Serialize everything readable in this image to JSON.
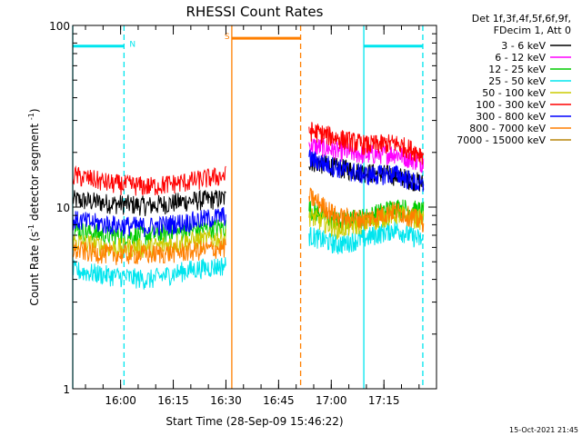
{
  "chart_data": {
    "type": "line",
    "title": "RHESSI Count Rates",
    "xlabel": "Start Time (28-Sep-09 15:46:22)",
    "ylabel_main": "Count Rate (s",
    "ylabel_exponent": "-1",
    "ylabel_close": " detector segment",
    "ylabel_exponent2": "-1",
    "ylabel_end": ")",
    "legend_header": [
      "Det 1f,3f,4f,5f,6f,9f,",
      "FDecim 1, Att 0"
    ],
    "footer": "15-Oct-2021 21:45",
    "y_scale": "log",
    "ylim": [
      1,
      100
    ],
    "y_ticks": [
      {
        "value": 1,
        "label": "1"
      },
      {
        "value": 10,
        "label": "10"
      },
      {
        "value": 100,
        "label": "100"
      }
    ],
    "xlim_minutes_from_start": [
      0,
      103.6
    ],
    "x_ticks": [
      {
        "label": "16:00",
        "minutes": 13.63
      },
      {
        "label": "16:15",
        "minutes": 28.63
      },
      {
        "label": "16:30",
        "minutes": 43.63
      },
      {
        "label": "16:45",
        "minutes": 58.63
      },
      {
        "label": "17:00",
        "minutes": 73.63
      },
      {
        "label": "17:15",
        "minutes": 88.63
      }
    ],
    "flags": [
      {
        "label": "N",
        "color": "#00e5ee",
        "start_minutes": 0,
        "end_minutes": 14.6,
        "value": 77
      },
      {
        "label": "",
        "color": "#00e5ee",
        "start_minutes": 82.9,
        "end_minutes": 99.7,
        "value": 77
      },
      {
        "label": "S",
        "color": "#ff7f00",
        "start_minutes": 45.3,
        "end_minutes": 64.9,
        "value": 85
      }
    ],
    "interval_lines": [
      {
        "minutes": 0.0,
        "color": "#00e5ee",
        "style": "solid"
      },
      {
        "minutes": 14.6,
        "color": "#00e5ee",
        "style": "dashed"
      },
      {
        "minutes": 45.3,
        "color": "#ff7f00",
        "style": "solid"
      },
      {
        "minutes": 64.9,
        "color": "#ff7f00",
        "style": "dashed"
      },
      {
        "minutes": 82.9,
        "color": "#00e5ee",
        "style": "solid"
      },
      {
        "minutes": 99.7,
        "color": "#00e5ee",
        "style": "dashed"
      }
    ],
    "data_segments": [
      {
        "start_minutes": 0.0,
        "end_minutes": 43.6
      },
      {
        "start_minutes": 67.3,
        "end_minutes": 99.9
      }
    ],
    "series": [
      {
        "name": "3 - 6 keV",
        "color": "#000000",
        "seg1": [
          11.0,
          10.5,
          10.2,
          10.8,
          11.2
        ],
        "seg2": [
          18.0,
          16.5,
          15.5,
          15.0,
          13.5
        ]
      },
      {
        "name": "6 - 12 keV",
        "color": "#ff00ff",
        "seg1": [
          null,
          null,
          null,
          null,
          null
        ],
        "seg2": [
          22.0,
          20.5,
          19.5,
          19.8,
          17.5
        ]
      },
      {
        "name": "12 - 25 keV",
        "color": "#00cc00",
        "seg1": [
          7.5,
          7.0,
          7.0,
          7.4,
          7.8
        ],
        "seg2": [
          9.8,
          8.3,
          8.8,
          10.0,
          9.5
        ]
      },
      {
        "name": "25 - 50 keV",
        "color": "#00e5ee",
        "seg1": [
          4.5,
          4.2,
          4.0,
          4.5,
          4.8
        ],
        "seg2": [
          7.0,
          6.2,
          6.8,
          7.6,
          6.5
        ]
      },
      {
        "name": "50 - 100 keV",
        "color": "#cccc00",
        "seg1": [
          6.5,
          6.0,
          6.0,
          6.5,
          6.8
        ],
        "seg2": [
          9.0,
          7.6,
          8.2,
          9.2,
          8.5
        ]
      },
      {
        "name": "100 - 300 keV",
        "color": "#ff0000",
        "seg1": [
          15.0,
          13.5,
          13.0,
          13.8,
          15.0
        ],
        "seg2": [
          26.5,
          24.0,
          22.0,
          22.5,
          19.5
        ]
      },
      {
        "name": "300 - 800 keV",
        "color": "#0000ff",
        "seg1": [
          8.5,
          8.0,
          7.8,
          8.3,
          9.0
        ],
        "seg2": [
          18.5,
          16.5,
          15.0,
          15.3,
          13.0
        ]
      },
      {
        "name": "800 - 7000 keV",
        "color": "#ff7f00",
        "seg1": [
          5.8,
          5.5,
          5.5,
          5.7,
          6.0
        ],
        "seg2": [
          11.5,
          8.8,
          8.6,
          9.6,
          8.3
        ]
      },
      {
        "name": "7000 - 15000 keV",
        "color": "#b8860b",
        "seg1": [
          null,
          null,
          null,
          null,
          null
        ],
        "seg2": [
          null,
          null,
          null,
          null,
          null
        ]
      }
    ],
    "legend_placement": "right-outside"
  }
}
